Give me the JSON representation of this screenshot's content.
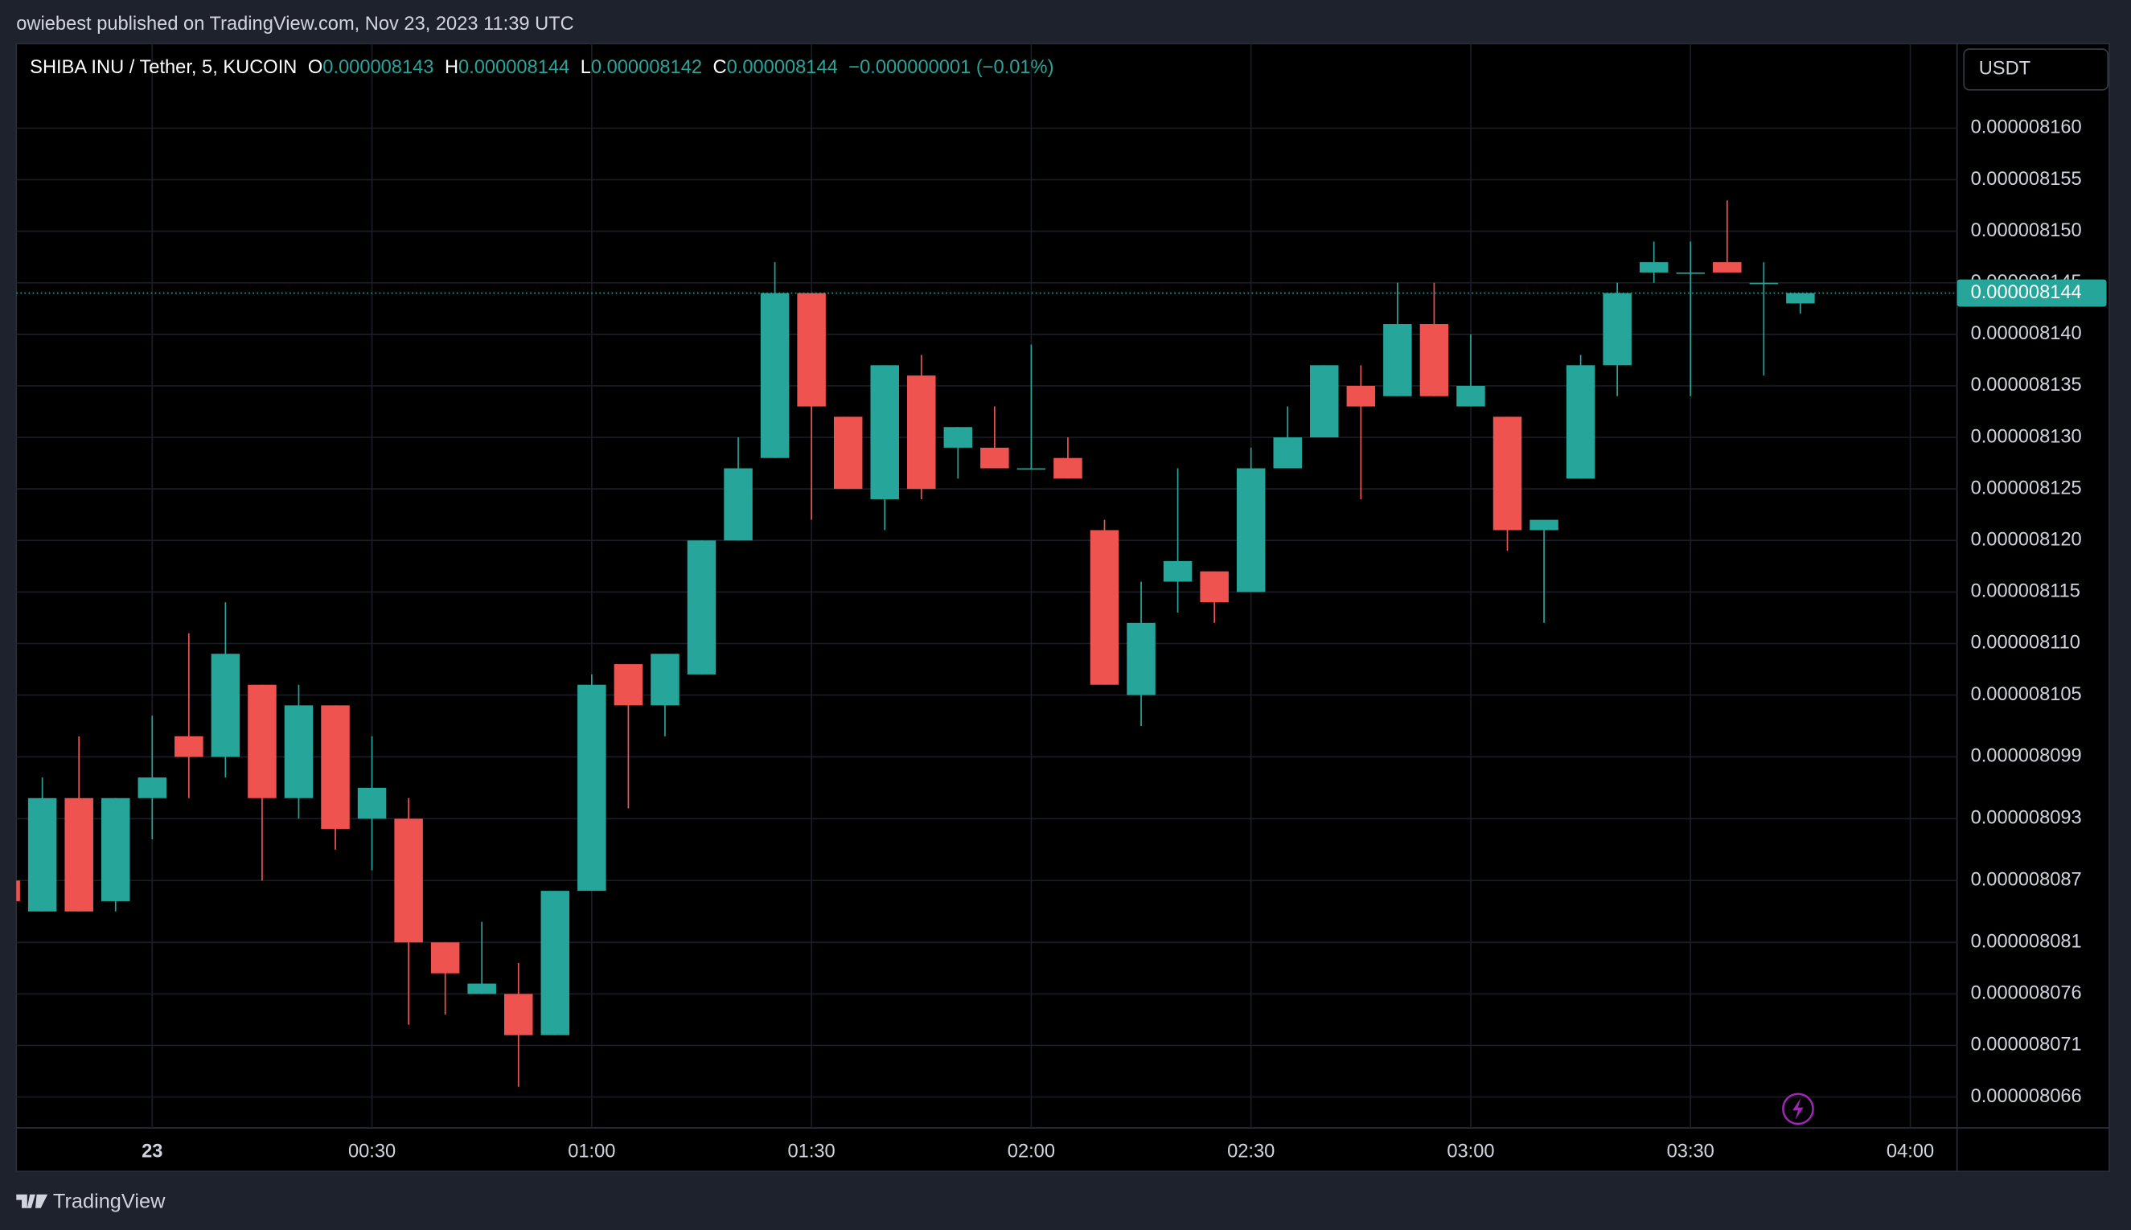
{
  "header": {
    "attribution": "owiebest published on TradingView.com, Nov 23, 2023 11:39 UTC",
    "brand": "TradingView",
    "currency_button": "USDT"
  },
  "chart_data": {
    "type": "candlestick",
    "title": "SHIBA INU / Tether, 5, KUCOIN",
    "legend_values": [
      {
        "label": "O",
        "value": "0.000008143"
      },
      {
        "label": "H",
        "value": "0.000008144"
      },
      {
        "label": "L",
        "value": "0.000008142"
      },
      {
        "label": "C",
        "value": "0.000008144"
      }
    ],
    "change": "−0.000000001 (−0.01%)",
    "up_color": "#26a69a",
    "down_color": "#ef5350",
    "x": [
      "23:40",
      "23:45",
      "23:50",
      "23:55",
      "00:00",
      "00:05",
      "00:10",
      "00:15",
      "00:20",
      "00:25",
      "00:30",
      "00:35",
      "00:40",
      "00:45",
      "00:50",
      "00:55",
      "01:00",
      "01:05",
      "01:10",
      "01:15",
      "01:20",
      "01:25",
      "01:30",
      "01:35",
      "01:40",
      "01:45",
      "01:50",
      "01:55",
      "02:00",
      "02:05",
      "02:10",
      "02:15",
      "02:20",
      "02:25",
      "02:30",
      "02:35",
      "02:40",
      "02:45",
      "02:50",
      "02:55",
      "03:00",
      "03:05",
      "03:10",
      "03:15",
      "03:20",
      "03:25",
      "03:30",
      "03:35",
      "03:40",
      "03:45"
    ],
    "open": [
      8.087e-06,
      8.084e-06,
      8.095e-06,
      8.085e-06,
      8.095e-06,
      8.101e-06,
      8.099e-06,
      8.106e-06,
      8.095e-06,
      8.104e-06,
      8.093e-06,
      8.093e-06,
      8.081e-06,
      8.076e-06,
      8.076e-06,
      8.072e-06,
      8.086e-06,
      8.108e-06,
      8.104e-06,
      8.107e-06,
      8.12e-06,
      8.128e-06,
      8.144e-06,
      8.132e-06,
      8.124e-06,
      8.136e-06,
      8.129e-06,
      8.129e-06,
      8.127e-06,
      8.128e-06,
      8.121e-06,
      8.105e-06,
      8.116e-06,
      8.117e-06,
      8.115e-06,
      8.127e-06,
      8.13e-06,
      8.135e-06,
      8.134e-06,
      8.141e-06,
      8.133e-06,
      8.132e-06,
      8.121e-06,
      8.126e-06,
      8.137e-06,
      8.146e-06,
      8.146e-06,
      8.147e-06,
      8.145e-06,
      8.143e-06
    ],
    "high": [
      8.087e-06,
      8.097e-06,
      8.101e-06,
      8.095e-06,
      8.103e-06,
      8.111e-06,
      8.114e-06,
      8.106e-06,
      8.106e-06,
      8.104e-06,
      8.101e-06,
      8.095e-06,
      8.081e-06,
      8.083e-06,
      8.079e-06,
      8.086e-06,
      8.107e-06,
      8.108e-06,
      8.109e-06,
      8.12e-06,
      8.13e-06,
      8.147e-06,
      8.144e-06,
      8.132e-06,
      8.137e-06,
      8.138e-06,
      8.131e-06,
      8.133e-06,
      8.139e-06,
      8.13e-06,
      8.122e-06,
      8.116e-06,
      8.127e-06,
      8.117e-06,
      8.129e-06,
      8.133e-06,
      8.137e-06,
      8.137e-06,
      8.145e-06,
      8.145e-06,
      8.14e-06,
      8.132e-06,
      8.122e-06,
      8.138e-06,
      8.145e-06,
      8.149e-06,
      8.149e-06,
      8.153e-06,
      8.147e-06,
      8.144e-06
    ],
    "low": [
      8.085e-06,
      8.084e-06,
      8.084e-06,
      8.084e-06,
      8.091e-06,
      8.095e-06,
      8.097e-06,
      8.087e-06,
      8.093e-06,
      8.09e-06,
      8.088e-06,
      8.073e-06,
      8.074e-06,
      8.076e-06,
      8.067e-06,
      8.072e-06,
      8.086e-06,
      8.094e-06,
      8.101e-06,
      8.107e-06,
      8.12e-06,
      8.128e-06,
      8.122e-06,
      8.125e-06,
      8.121e-06,
      8.124e-06,
      8.126e-06,
      8.127e-06,
      8.127e-06,
      8.126e-06,
      8.106e-06,
      8.102e-06,
      8.113e-06,
      8.112e-06,
      8.115e-06,
      8.127e-06,
      8.13e-06,
      8.124e-06,
      8.134e-06,
      8.134e-06,
      8.133e-06,
      8.119e-06,
      8.112e-06,
      8.126e-06,
      8.134e-06,
      8.145e-06,
      8.134e-06,
      8.146e-06,
      8.136e-06,
      8.142e-06
    ],
    "close": [
      8.085e-06,
      8.095e-06,
      8.084e-06,
      8.095e-06,
      8.097e-06,
      8.099e-06,
      8.109e-06,
      8.095e-06,
      8.104e-06,
      8.092e-06,
      8.096e-06,
      8.081e-06,
      8.078e-06,
      8.077e-06,
      8.072e-06,
      8.086e-06,
      8.106e-06,
      8.104e-06,
      8.109e-06,
      8.12e-06,
      8.127e-06,
      8.144e-06,
      8.133e-06,
      8.125e-06,
      8.137e-06,
      8.125e-06,
      8.131e-06,
      8.127e-06,
      8.127e-06,
      8.126e-06,
      8.106e-06,
      8.112e-06,
      8.118e-06,
      8.114e-06,
      8.127e-06,
      8.13e-06,
      8.137e-06,
      8.133e-06,
      8.141e-06,
      8.134e-06,
      8.135e-06,
      8.121e-06,
      8.122e-06,
      8.137e-06,
      8.144e-06,
      8.147e-06,
      8.146e-06,
      8.146e-06,
      8.145e-06,
      8.144e-06
    ],
    "ylim": [
      8.063e-06,
      8.1682e-06
    ],
    "yticks": [
      {
        "value": 8.16e-06,
        "label": "0.000008160"
      },
      {
        "value": 8.155e-06,
        "label": "0.000008155"
      },
      {
        "value": 8.15e-06,
        "label": "0.000008150"
      },
      {
        "value": 8.145e-06,
        "label": "0.000008145"
      },
      {
        "value": 8.14e-06,
        "label": "0.000008140"
      },
      {
        "value": 8.135e-06,
        "label": "0.000008135"
      },
      {
        "value": 8.13e-06,
        "label": "0.000008130"
      },
      {
        "value": 8.125e-06,
        "label": "0.000008125"
      },
      {
        "value": 8.12e-06,
        "label": "0.000008120"
      },
      {
        "value": 8.115e-06,
        "label": "0.000008115"
      },
      {
        "value": 8.11e-06,
        "label": "0.000008110"
      },
      {
        "value": 8.105e-06,
        "label": "0.000008105"
      },
      {
        "value": 8.099e-06,
        "label": "0.000008099"
      },
      {
        "value": 8.093e-06,
        "label": "0.000008093"
      },
      {
        "value": 8.087e-06,
        "label": "0.000008087"
      },
      {
        "value": 8.081e-06,
        "label": "0.000008081"
      },
      {
        "value": 8.076e-06,
        "label": "0.000008076"
      },
      {
        "value": 8.071e-06,
        "label": "0.000008071"
      },
      {
        "value": 8.066e-06,
        "label": "0.000008066"
      }
    ],
    "xticks": [
      {
        "value": "00:00",
        "label": "23"
      },
      "00:30",
      "01:00",
      "01:30",
      "02:00",
      "02:30",
      "03:00",
      "03:30",
      "04:00"
    ],
    "last_price": {
      "value": 8.144e-06,
      "label": "0.000008144"
    },
    "grid": true
  }
}
